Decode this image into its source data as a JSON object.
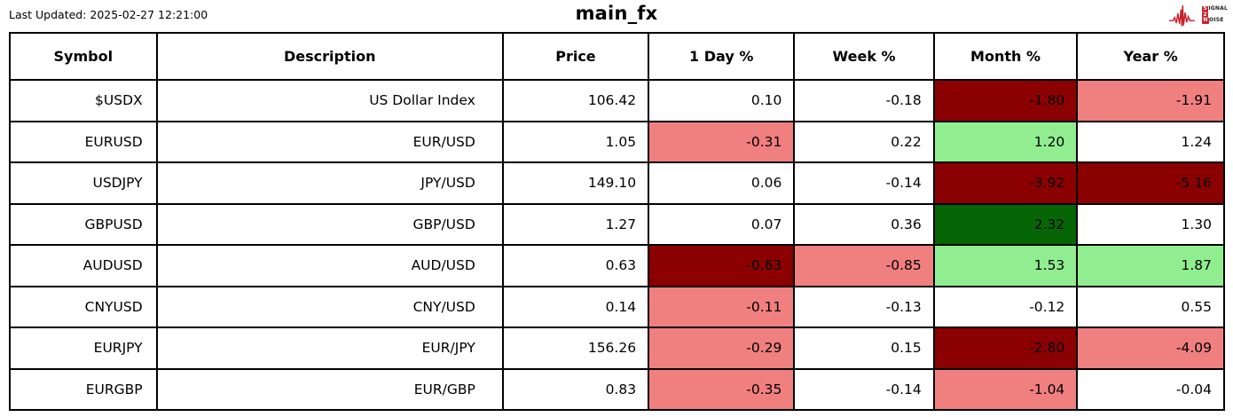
{
  "header": {
    "last_updated": "Last Updated: 2025-02-27 12:21:00",
    "title": "main_fx",
    "logo": {
      "name": "signal-2-noise-logo",
      "signal_first": "S",
      "signal_rest": "IGNAL",
      "middle": "2",
      "noise_first": "N",
      "noise_rest": "OISE"
    }
  },
  "colors": {
    "dark_red": "#8B0000",
    "light_red": "#F08080",
    "light_green": "#90EE90",
    "dark_green": "#066606",
    "logo_red": "#C8202A",
    "grid": "#000000",
    "background": "#FFFFFF"
  },
  "chart_data": {
    "type": "table",
    "title": "main_fx",
    "columns": [
      "Symbol",
      "Description",
      "Price",
      "1 Day %",
      "Week %",
      "Month %",
      "Year %"
    ],
    "rows": [
      {
        "symbol": "$USDX",
        "description": "US Dollar Index",
        "price": "106.42",
        "day": "0.10",
        "week": "-0.18",
        "month": "-1.80",
        "year": "-1.91",
        "cell_colors": {
          "month": "dark_red",
          "year": "light_red"
        }
      },
      {
        "symbol": "EURUSD",
        "description": "EUR/USD",
        "price": "1.05",
        "day": "-0.31",
        "week": "0.22",
        "month": "1.20",
        "year": "1.24",
        "cell_colors": {
          "day": "light_red",
          "month": "light_green"
        }
      },
      {
        "symbol": "USDJPY",
        "description": "JPY/USD",
        "price": "149.10",
        "day": "0.06",
        "week": "-0.14",
        "month": "-3.92",
        "year": "-5.16",
        "cell_colors": {
          "month": "dark_red",
          "year": "dark_red"
        }
      },
      {
        "symbol": "GBPUSD",
        "description": "GBP/USD",
        "price": "1.27",
        "day": "0.07",
        "week": "0.36",
        "month": "2.32",
        "year": "1.30",
        "cell_colors": {
          "month": "dark_green"
        }
      },
      {
        "symbol": "AUDUSD",
        "description": "AUD/USD",
        "price": "0.63",
        "day": "-0.63",
        "week": "-0.85",
        "month": "1.53",
        "year": "1.87",
        "cell_colors": {
          "day": "dark_red",
          "week": "light_red",
          "month": "light_green",
          "year": "light_green"
        }
      },
      {
        "symbol": "CNYUSD",
        "description": "CNY/USD",
        "price": "0.14",
        "day": "-0.11",
        "week": "-0.13",
        "month": "-0.12",
        "year": "0.55",
        "cell_colors": {
          "day": "light_red"
        }
      },
      {
        "symbol": "EURJPY",
        "description": "EUR/JPY",
        "price": "156.26",
        "day": "-0.29",
        "week": "0.15",
        "month": "-2.80",
        "year": "-4.09",
        "cell_colors": {
          "day": "light_red",
          "month": "dark_red",
          "year": "light_red"
        }
      },
      {
        "symbol": "EURGBP",
        "description": "EUR/GBP",
        "price": "0.83",
        "day": "-0.35",
        "week": "-0.14",
        "month": "-1.04",
        "year": "-0.04",
        "cell_colors": {
          "day": "light_red",
          "month": "light_red"
        }
      }
    ]
  }
}
